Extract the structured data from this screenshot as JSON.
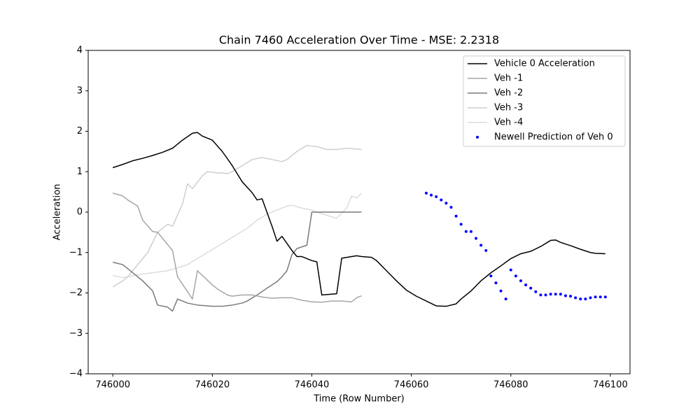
{
  "chart_data": {
    "type": "line",
    "title": "Chain 7460 Acceleration Over Time - MSE: 2.2318",
    "x_label": "Time (Row Number)",
    "y_label": "Acceleration",
    "xlim": [
      745995.05,
      746103.95
    ],
    "xticks": [
      746000,
      746020,
      746040,
      746060,
      746080,
      746100
    ],
    "ylim": [
      -4,
      4
    ],
    "yticks": [
      {
        "value": -4,
        "label": "−4"
      },
      {
        "value": -3,
        "label": "−3"
      },
      {
        "value": -2,
        "label": "−2"
      },
      {
        "value": -1,
        "label": "−1"
      },
      0,
      1,
      2,
      3,
      4
    ],
    "grid": false,
    "legend": "upper right",
    "series": [
      {
        "name": "Vehicle 0 Acceleration",
        "color": "#000000",
        "style": "line",
        "x": [
          746000,
          746002,
          746004,
          746006,
          746008,
          746010,
          746012,
          746014,
          746016,
          746017,
          746018,
          746020,
          746022,
          746024,
          746026,
          746028,
          746029,
          746030,
          746032,
          746033,
          746034,
          746036,
          746037,
          746038,
          746040,
          746041,
          746042,
          746044,
          746045,
          746046,
          746048,
          746049,
          746050,
          746052,
          746053,
          746055,
          746057,
          746059,
          746061,
          746063,
          746065,
          746067,
          746069,
          746070,
          746072,
          746074,
          746076,
          746078,
          746080,
          746082,
          746084,
          746086,
          746088,
          746089,
          746090,
          746092,
          746094,
          746096,
          746097,
          746099
        ],
        "values": [
          1.1,
          1.18,
          1.27,
          1.33,
          1.4,
          1.48,
          1.58,
          1.78,
          1.95,
          1.97,
          1.88,
          1.78,
          1.5,
          1.15,
          0.75,
          0.48,
          0.3,
          0.33,
          -0.35,
          -0.72,
          -0.6,
          -0.95,
          -1.1,
          -1.1,
          -1.2,
          -1.23,
          -2.05,
          -2.03,
          -2.02,
          -1.14,
          -1.1,
          -1.08,
          -1.1,
          -1.12,
          -1.2,
          -1.45,
          -1.7,
          -1.93,
          -2.08,
          -2.2,
          -2.32,
          -2.33,
          -2.27,
          -2.15,
          -1.95,
          -1.7,
          -1.5,
          -1.33,
          -1.15,
          -1.03,
          -0.97,
          -0.85,
          -0.7,
          -0.69,
          -0.75,
          -0.83,
          -0.92,
          -1.0,
          -1.02,
          -1.03
        ]
      },
      {
        "name": "Veh -1",
        "color": "#a6a6a6",
        "style": "line",
        "x": [
          746000,
          746002,
          746003,
          746005,
          746006,
          746008,
          746009,
          746012,
          746013,
          746016,
          746017,
          746020,
          746021,
          746023,
          746024,
          746026,
          746028,
          746030,
          746032,
          746034,
          746036,
          746038,
          746040,
          746042,
          746044,
          746046,
          746048,
          746049,
          746050
        ],
        "values": [
          0.47,
          0.4,
          0.3,
          0.15,
          -0.2,
          -0.48,
          -0.5,
          -0.95,
          -1.6,
          -2.15,
          -1.45,
          -1.8,
          -1.9,
          -2.05,
          -2.08,
          -2.05,
          -2.05,
          -2.1,
          -2.13,
          -2.12,
          -2.12,
          -2.18,
          -2.22,
          -2.23,
          -2.2,
          -2.2,
          -2.22,
          -2.12,
          -2.07
        ]
      },
      {
        "name": "Veh -2",
        "color": "#7a7a7a",
        "style": "line",
        "x": [
          746000,
          746002,
          746003,
          746006,
          746008,
          746009,
          746011,
          746012,
          746013,
          746015,
          746017,
          746020,
          746022,
          746024,
          746026,
          746027,
          746029,
          746031,
          746033,
          746034,
          746035,
          746036,
          746037,
          746039,
          746040,
          746042,
          746050
        ],
        "values": [
          -1.24,
          -1.3,
          -1.4,
          -1.7,
          -1.95,
          -2.3,
          -2.35,
          -2.45,
          -2.15,
          -2.25,
          -2.3,
          -2.33,
          -2.33,
          -2.3,
          -2.25,
          -2.2,
          -2.05,
          -1.88,
          -1.72,
          -1.6,
          -1.45,
          -1.05,
          -0.9,
          -0.82,
          0,
          0,
          0
        ]
      },
      {
        "name": "Veh -3",
        "color": "#cfcfcf",
        "style": "line",
        "x": [
          746000,
          746002,
          746003,
          746005,
          746007,
          746009,
          746011,
          746012,
          746014,
          746015,
          746016,
          746018,
          746019,
          746021,
          746022,
          746023,
          746024,
          746026,
          746028,
          746030,
          746032,
          746034,
          746035,
          746037,
          746039,
          746041,
          746043,
          746045,
          746047,
          746050
        ],
        "values": [
          -1.85,
          -1.7,
          -1.6,
          -1.3,
          -1.0,
          -0.5,
          -0.3,
          -0.35,
          0.2,
          0.7,
          0.58,
          0.9,
          1.0,
          0.97,
          0.97,
          0.95,
          1.0,
          1.15,
          1.3,
          1.35,
          1.3,
          1.25,
          1.3,
          1.5,
          1.65,
          1.62,
          1.55,
          1.55,
          1.58,
          1.55
        ]
      },
      {
        "name": "Veh -4",
        "color": "#dcdcdc",
        "style": "line",
        "x": [
          746000,
          746002,
          746003,
          746005,
          746008,
          746011,
          746013,
          746015,
          746017,
          746019,
          746021,
          746023,
          746025,
          746027,
          746029,
          746031,
          746033,
          746035,
          746036,
          746038,
          746040,
          746041,
          746043,
          746045,
          746047,
          746048,
          746049,
          746050
        ],
        "values": [
          -1.57,
          -1.62,
          -1.6,
          -1.55,
          -1.5,
          -1.45,
          -1.38,
          -1.3,
          -1.15,
          -1.0,
          -0.85,
          -0.7,
          -0.55,
          -0.4,
          -0.2,
          -0.05,
          0.05,
          0.15,
          0.17,
          0.1,
          0.05,
          0,
          -0.08,
          -0.15,
          0.1,
          0.4,
          0.35,
          0.47
        ]
      },
      {
        "name": "Newell Prediction of Veh 0",
        "color": "#0000ff",
        "style": "dots",
        "x": [
          746063,
          746064,
          746065,
          746066,
          746067,
          746068,
          746069,
          746070,
          746071,
          746072,
          746073,
          746074,
          746075,
          746076,
          746077,
          746078,
          746079,
          746080,
          746081,
          746082,
          746083,
          746084,
          746085,
          746086,
          746087,
          746088,
          746089,
          746090,
          746091,
          746092,
          746093,
          746094,
          746095,
          746096,
          746097,
          746098,
          746099
        ],
        "values": [
          0.47,
          0.42,
          0.38,
          0.3,
          0.22,
          0.12,
          -0.1,
          -0.3,
          -0.48,
          -0.48,
          -0.65,
          -0.82,
          -0.95,
          -1.58,
          -1.75,
          -1.95,
          -2.15,
          -1.43,
          -1.58,
          -1.7,
          -1.8,
          -1.88,
          -1.97,
          -2.05,
          -2.05,
          -2.03,
          -2.03,
          -2.03,
          -2.07,
          -2.08,
          -2.12,
          -2.15,
          -2.15,
          -2.12,
          -2.1,
          -2.1,
          -2.1
        ]
      }
    ]
  }
}
